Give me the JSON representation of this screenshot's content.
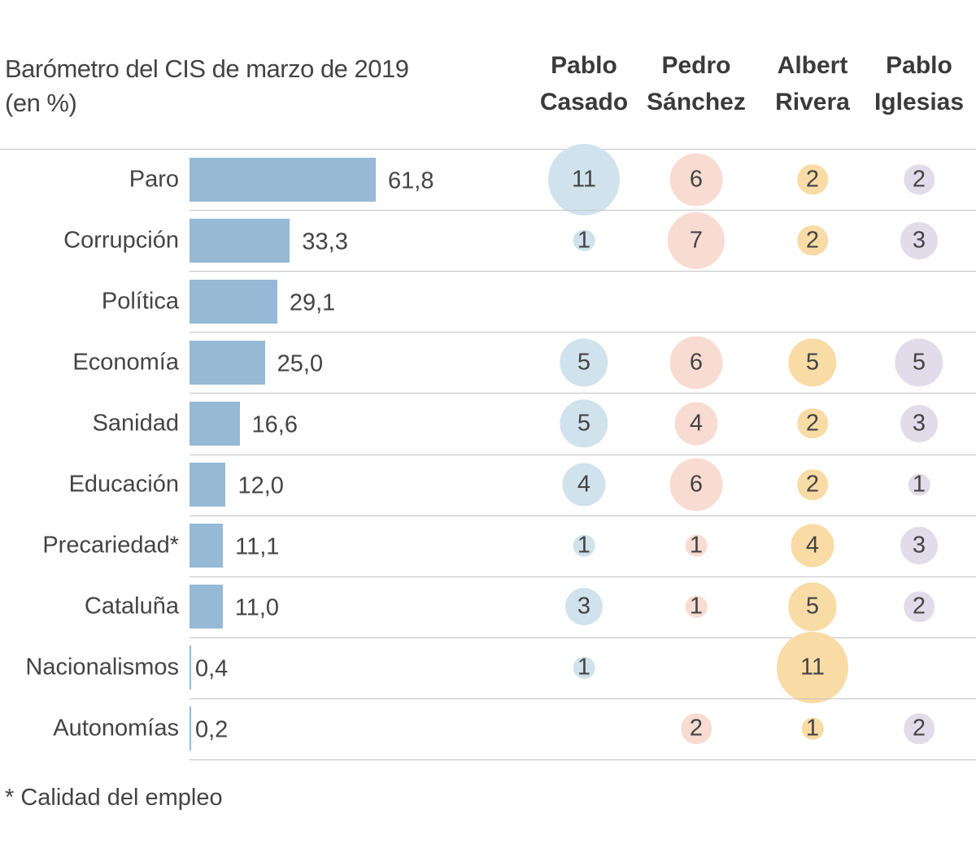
{
  "chart_data": {
    "type": "bar",
    "title": "Barómetro del CIS de marzo de 2019",
    "subtitle": "(en %)",
    "categories": [
      "Paro",
      "Corrupción",
      "Política",
      "Economía",
      "Sanidad",
      "Educación",
      "Precariedad*",
      "Cataluña",
      "Nacionalismos",
      "Autonomías"
    ],
    "values": [
      61.8,
      33.3,
      29.1,
      25.0,
      16.6,
      12.0,
      11.1,
      11.0,
      0.4,
      0.2
    ],
    "value_labels": [
      "61,8",
      "33,3",
      "29,1",
      "25,0",
      "16,6",
      "12,0",
      "11,1",
      "11,0",
      "0,4",
      "0,2"
    ],
    "xlim": [
      0,
      65
    ],
    "bar_color": "#96b9d5",
    "bubble_series": [
      {
        "name": "Pablo Casado",
        "name_lines": [
          "Pablo",
          "Casado"
        ],
        "color": "#d0e3ec",
        "values": [
          11,
          1,
          null,
          5,
          5,
          4,
          1,
          3,
          1,
          null
        ]
      },
      {
        "name": "Pedro Sánchez",
        "name_lines": [
          "Pedro",
          "Sánchez"
        ],
        "color": "#f9dcd1",
        "values": [
          6,
          7,
          null,
          6,
          4,
          6,
          1,
          1,
          null,
          2
        ]
      },
      {
        "name": "Albert Rivera",
        "name_lines": [
          "Albert",
          "Rivera"
        ],
        "color": "#f9dba5",
        "values": [
          2,
          2,
          null,
          5,
          2,
          2,
          4,
          5,
          11,
          1
        ]
      },
      {
        "name": "Pablo Iglesias",
        "name_lines": [
          "Pablo",
          "Iglesias"
        ],
        "color": "#e2dcea",
        "values": [
          2,
          3,
          null,
          5,
          3,
          1,
          3,
          2,
          null,
          2
        ]
      }
    ],
    "footnote": "* Calidad del empleo"
  }
}
